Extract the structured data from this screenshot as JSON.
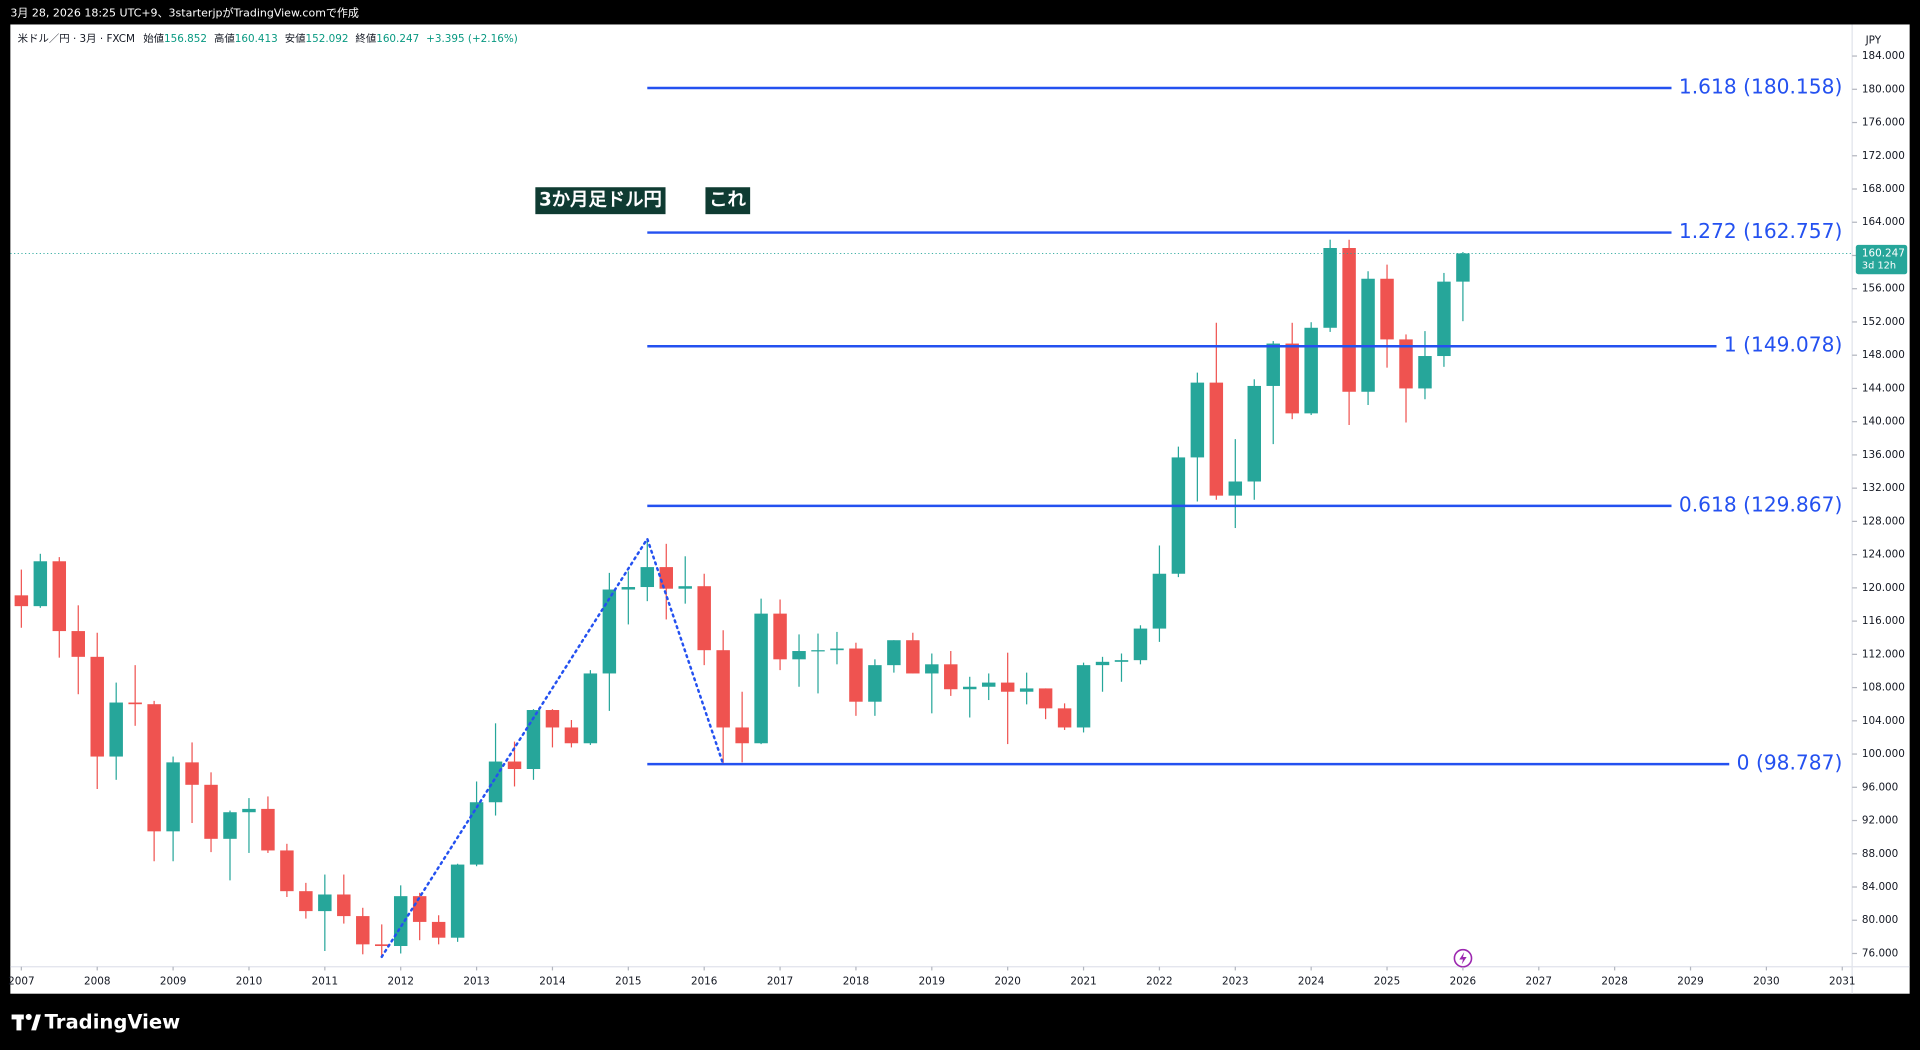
{
  "page": {
    "caption": "3月 28, 2026 18:25 UTC+9、3starterjpがTradingView.comで作成",
    "brand": "TradingView"
  },
  "chart_data": {
    "type": "candlestick",
    "symbol": "米ドル／円 · 3月 · FXCM",
    "open_label": "始値",
    "high_label": "高値",
    "low_label": "安値",
    "close_label": "終値",
    "change": "+3.395 (+2.16%)",
    "currency": "JPY",
    "countdown": "3d 12h",
    "annotations": [
      "3か月足ドル円",
      "これ"
    ],
    "up_color": "#26a69a",
    "down_color": "#ef5350",
    "fib_color": "#2451f0",
    "grid": false,
    "x": [
      2007,
      2007.25,
      2007.5,
      2007.75,
      2008,
      2008.25,
      2008.5,
      2008.75,
      2009,
      2009.25,
      2009.5,
      2009.75,
      2010,
      2010.25,
      2010.5,
      2010.75,
      2011,
      2011.25,
      2011.5,
      2011.75,
      2012,
      2012.25,
      2012.5,
      2012.75,
      2013,
      2013.25,
      2013.5,
      2013.75,
      2014,
      2014.25,
      2014.5,
      2014.75,
      2015,
      2015.25,
      2015.5,
      2015.75,
      2016,
      2016.25,
      2016.5,
      2016.75,
      2017,
      2017.25,
      2017.5,
      2017.75,
      2018,
      2018.25,
      2018.5,
      2018.75,
      2019,
      2019.25,
      2019.5,
      2019.75,
      2020,
      2020.25,
      2020.5,
      2020.75,
      2021,
      2021.25,
      2021.5,
      2021.75,
      2022,
      2022.25,
      2022.5,
      2022.75,
      2023,
      2023.25,
      2023.5,
      2023.75,
      2024,
      2024.25,
      2024.5,
      2024.75,
      2025,
      2025.25,
      2025.5,
      2025.75,
      2026
    ],
    "open": [
      119.1,
      117.8,
      123.2,
      114.8,
      111.7,
      99.7,
      106.2,
      106.0,
      90.7,
      99.0,
      96.3,
      89.8,
      93.0,
      93.4,
      88.4,
      83.5,
      81.1,
      83.1,
      80.5,
      77.1,
      76.9,
      82.9,
      79.8,
      77.9,
      86.7,
      94.2,
      99.1,
      98.2,
      105.3,
      103.2,
      101.3,
      109.7,
      119.8,
      120.1,
      122.5,
      119.9,
      120.2,
      112.5,
      103.2,
      101.3,
      116.9,
      111.4,
      112.4,
      112.5,
      112.7,
      106.3,
      110.7,
      113.7,
      109.7,
      110.8,
      107.8,
      108.1,
      108.6,
      107.5,
      107.9,
      105.5,
      103.2,
      110.7,
      111.1,
      111.3,
      115.1,
      121.7,
      135.7,
      144.7,
      131.1,
      132.8,
      144.3,
      149.4,
      141.0,
      151.3,
      160.9,
      143.6,
      157.2,
      149.9,
      144.0,
      147.9,
      156.852
    ],
    "high": [
      122.2,
      124.1,
      123.7,
      117.9,
      114.6,
      108.6,
      110.7,
      106.4,
      99.7,
      101.4,
      97.8,
      93.2,
      94.7,
      94.9,
      89.2,
      84.5,
      85.5,
      85.5,
      81.5,
      79.5,
      84.2,
      83.3,
      80.6,
      86.8,
      96.7,
      103.7,
      101.5,
      105.4,
      105.4,
      104.1,
      110.1,
      121.8,
      122.0,
      125.9,
      125.3,
      123.8,
      121.7,
      114.9,
      107.5,
      118.7,
      118.6,
      114.4,
      114.5,
      114.7,
      113.4,
      111.4,
      113.7,
      114.6,
      112.1,
      112.4,
      109.3,
      109.7,
      112.2,
      109.8,
      107.9,
      106.1,
      111.0,
      111.7,
      112.1,
      115.5,
      125.1,
      137.0,
      145.9,
      151.9,
      137.9,
      145.1,
      149.7,
      151.9,
      151.97,
      161.9,
      161.9,
      158.1,
      158.9,
      150.5,
      150.9,
      157.9,
      160.413
    ],
    "low": [
      115.2,
      117.6,
      111.6,
      107.2,
      95.8,
      96.9,
      103.4,
      87.1,
      87.1,
      91.7,
      88.2,
      84.8,
      88.1,
      88.1,
      82.8,
      80.2,
      76.3,
      79.6,
      75.9,
      75.6,
      76.0,
      77.6,
      77.1,
      77.4,
      86.5,
      92.6,
      96.1,
      96.9,
      100.8,
      100.8,
      101.1,
      105.2,
      115.6,
      118.4,
      116.2,
      118.1,
      110.7,
      98.787,
      99.0,
      101.2,
      110.1,
      108.1,
      107.3,
      110.8,
      104.6,
      104.6,
      109.8,
      109.7,
      104.9,
      107.0,
      104.4,
      106.5,
      101.2,
      105.98,
      104.2,
      102.9,
      102.6,
      107.5,
      108.7,
      110.8,
      113.5,
      121.3,
      130.4,
      130.6,
      127.2,
      130.6,
      137.3,
      140.3,
      140.8,
      150.8,
      139.6,
      142.0,
      146.5,
      139.9,
      142.7,
      146.6,
      152.092
    ],
    "close": [
      117.8,
      123.2,
      114.8,
      111.7,
      99.7,
      106.2,
      106.0,
      90.7,
      99.0,
      96.3,
      89.8,
      93.0,
      93.4,
      88.4,
      83.5,
      81.1,
      83.1,
      80.5,
      77.1,
      76.9,
      82.9,
      79.8,
      77.9,
      86.7,
      94.2,
      99.1,
      98.2,
      105.3,
      103.2,
      101.3,
      109.7,
      119.8,
      120.1,
      122.5,
      119.9,
      120.2,
      112.5,
      103.2,
      101.3,
      116.9,
      111.4,
      112.4,
      112.5,
      112.7,
      106.3,
      110.7,
      113.7,
      109.7,
      110.8,
      107.8,
      108.1,
      108.6,
      107.5,
      107.9,
      105.5,
      103.2,
      110.7,
      111.1,
      111.3,
      115.1,
      121.7,
      135.7,
      144.7,
      131.1,
      132.8,
      144.3,
      149.4,
      141.0,
      151.3,
      160.9,
      143.6,
      157.2,
      149.9,
      144.0,
      147.9,
      156.852,
      160.247
    ],
    "fib_levels": [
      {
        "value": 180.158,
        "label": "1.618 (180.158)"
      },
      {
        "value": 162.757,
        "label": "1.272 (162.757)"
      },
      {
        "value": 149.078,
        "label": "1 (149.078)"
      },
      {
        "value": 129.867,
        "label": "0.618 (129.867)"
      },
      {
        "value": 98.787,
        "label": "0 (98.787)"
      }
    ],
    "xlim": [
      2006.855,
      2031.13
    ],
    "xticks": [
      2007,
      2008,
      2009,
      2010,
      2011,
      2012,
      2013,
      2014,
      2015,
      2016,
      2017,
      2018,
      2019,
      2020,
      2021,
      2022,
      2023,
      2024,
      2025,
      2026,
      2027,
      2028,
      2029,
      2030,
      2031
    ],
    "ylim": [
      74.4,
      187.8
    ],
    "yticks": [
      {
        "value": 76,
        "label": "76.000"
      },
      {
        "value": 80,
        "label": "80.000"
      },
      {
        "value": 84,
        "label": "84.000"
      },
      {
        "value": 88,
        "label": "88.000"
      },
      {
        "value": 92,
        "label": "92.000"
      },
      {
        "value": 96,
        "label": "96.000"
      },
      {
        "value": 100,
        "label": "100.000"
      },
      {
        "value": 104,
        "label": "104.000"
      },
      {
        "value": 108,
        "label": "108.000"
      },
      {
        "value": 112,
        "label": "112.000"
      },
      {
        "value": 116,
        "label": "116.000"
      },
      {
        "value": 120,
        "label": "120.000"
      },
      {
        "value": 124,
        "label": "124.000"
      },
      {
        "value": 128,
        "label": "128.000"
      },
      {
        "value": 132,
        "label": "132.000"
      },
      {
        "value": 136,
        "label": "136.000"
      },
      {
        "value": 140,
        "label": "140.000"
      },
      {
        "value": 144,
        "label": "144.000"
      },
      {
        "value": 148,
        "label": "148.000"
      },
      {
        "value": 152,
        "label": "152.000"
      },
      {
        "value": 156,
        "label": "156.000"
      },
      {
        "value": 160,
        "label": "160.000"
      },
      {
        "value": 164,
        "label": "164.000"
      },
      {
        "value": 168,
        "label": "168.000"
      },
      {
        "value": 172,
        "label": "172.000"
      },
      {
        "value": 176,
        "label": "176.000"
      },
      {
        "value": 180,
        "label": "180.000"
      },
      {
        "value": 184,
        "label": "184.000"
      }
    ]
  }
}
